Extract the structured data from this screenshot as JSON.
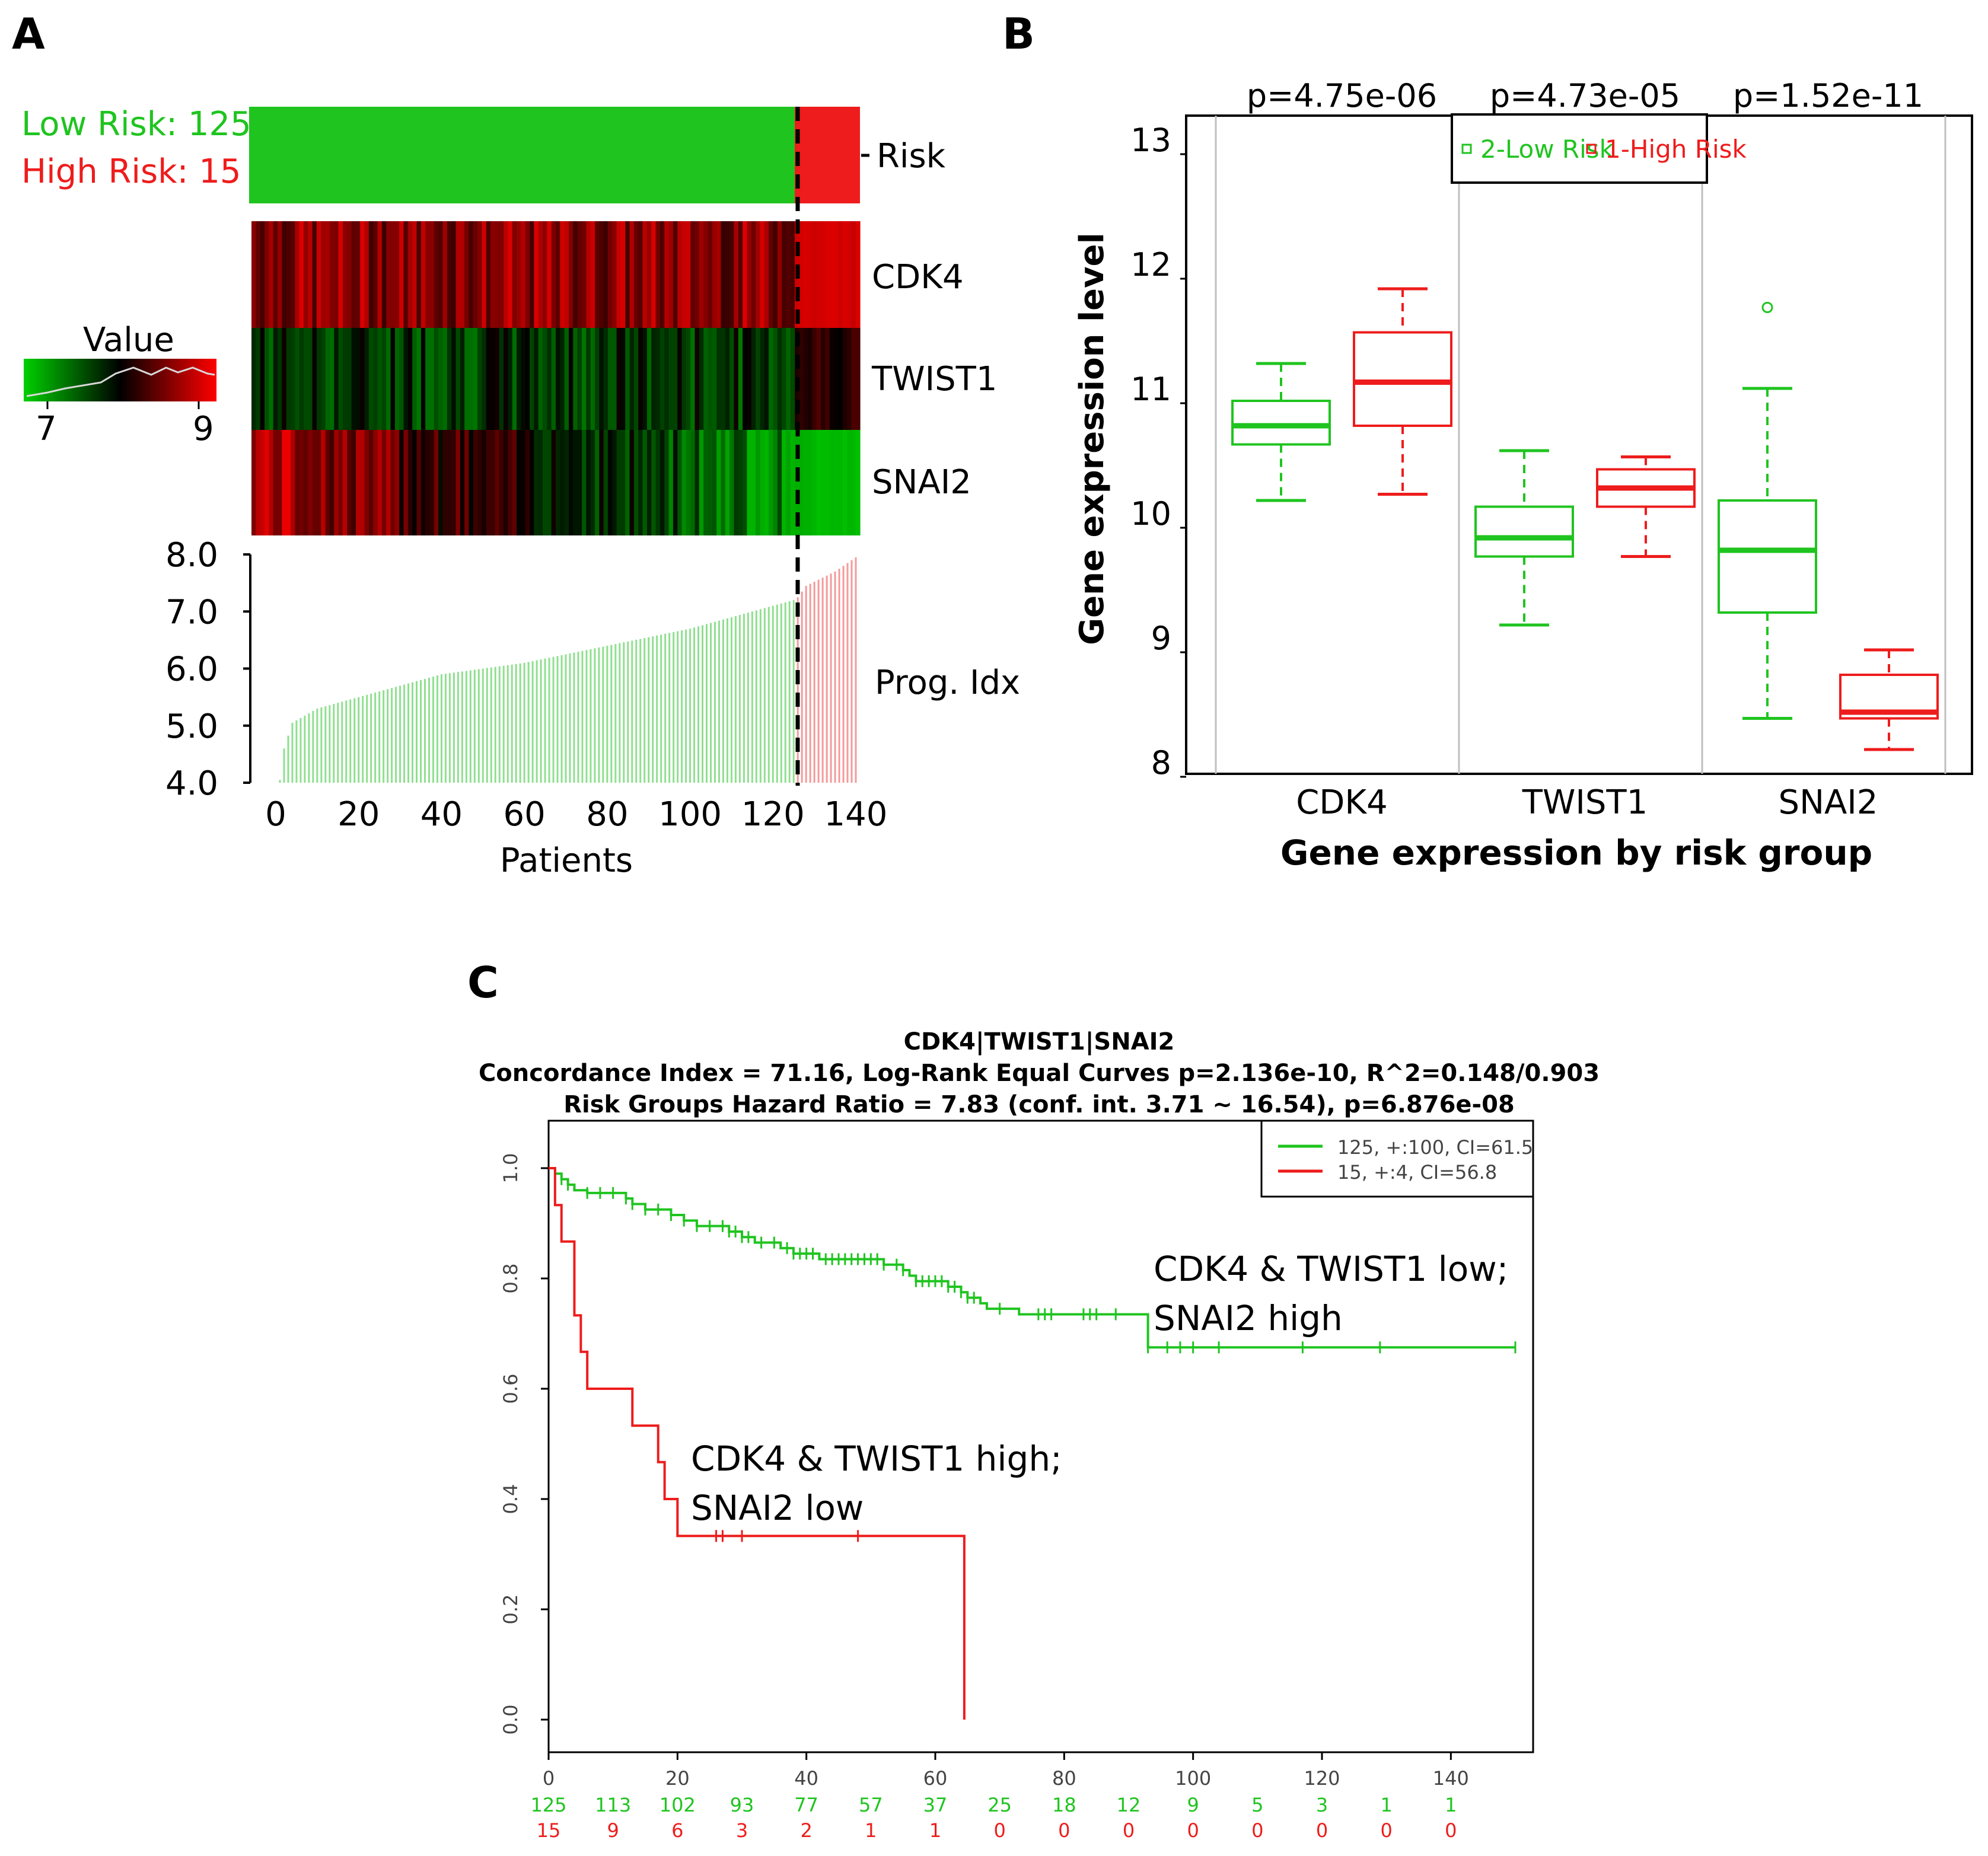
{
  "colors": {
    "low": "#1fc41f",
    "high": "#ee1c1c",
    "black": "#000000",
    "gray": "#bfbfbf"
  },
  "panel_a": {
    "letter": "A",
    "low_label": "Low Risk: 125",
    "high_label": "High Risk: 15",
    "risk_label": "Risk",
    "gene_labels": [
      "CDK4",
      "TWIST1",
      "SNAI2"
    ],
    "prog_label": "Prog. Idx",
    "legend": {
      "title": "Value",
      "min_label": "7",
      "max_label": "9"
    },
    "x_ticks": [
      "0",
      "20",
      "40",
      "60",
      "80",
      "100",
      "120",
      "140"
    ],
    "xlabel": "Patients",
    "y_ticks": [
      "4.0",
      "5.0",
      "6.0",
      "7.0",
      "8.0"
    ]
  },
  "panel_b": {
    "letter": "B",
    "ylabel": "Gene expression level",
    "xlabel": "Gene expression by risk group",
    "categories": [
      "CDK4",
      "TWIST1",
      "SNAI2"
    ],
    "pvalues": [
      "p=4.75e-06",
      "p=4.73e-05",
      "p=1.52e-11"
    ],
    "legend": [
      "2-Low Risk",
      "1-High Risk"
    ],
    "y_ticks": [
      "8",
      "9",
      "10",
      "11",
      "12",
      "13"
    ]
  },
  "panel_c": {
    "letter": "C",
    "title_lines": [
      "CDK4|TWIST1|SNAI2",
      "Concordance Index = 71.16, Log-Rank Equal Curves p=2.136e-10, R^2=0.148/0.903",
      "Risk Groups Hazard Ratio = 7.83 (conf. int. 3.71 ~ 16.54), p=6.876e-08"
    ],
    "legend": [
      "125, +:100, CI=61.5",
      "15, +:4, CI=56.8"
    ],
    "annotation_low": [
      "CDK4 & TWIST1 low;",
      "SNAI2 high"
    ],
    "annotation_high": [
      "CDK4 & TWIST1 high;",
      "SNAI2 low"
    ],
    "x_ticks": [
      "0",
      "20",
      "40",
      "60",
      "80",
      "100",
      "120",
      "140"
    ],
    "y_ticks": [
      "0.0",
      "0.2",
      "0.4",
      "0.6",
      "0.8",
      "1.0"
    ],
    "at_risk_low": [
      "125",
      "113",
      "102",
      "93",
      "77",
      "57",
      "37",
      "25",
      "18",
      "12",
      "9",
      "5",
      "3",
      "1",
      "1"
    ],
    "at_risk_high": [
      "15",
      "9",
      "6",
      "3",
      "2",
      "1",
      "1",
      "0",
      "0",
      "0",
      "0",
      "0",
      "0",
      "0",
      "0"
    ]
  },
  "chart_data": [
    {
      "type": "bar",
      "panel": "A",
      "xlabel": "Patients",
      "ylabel": "",
      "xlim": [
        0,
        140
      ],
      "ylim": [
        4.0,
        8.0
      ],
      "series": [
        {
          "name": "Low Risk",
          "n": 125,
          "x_range": [
            1,
            125
          ],
          "values_approx": {
            "1": 4.05,
            "2": 4.6,
            "4": 5.05,
            "10": 5.3,
            "20": 5.5,
            "40": 5.9,
            "60": 6.1,
            "80": 6.4,
            "100": 6.7,
            "125": 7.2
          }
        },
        {
          "name": "High Risk",
          "n": 15,
          "x_range": [
            126,
            140
          ],
          "values_approx": {
            "126": 7.25,
            "128": 7.45,
            "135": 7.7,
            "140": 7.95
          }
        }
      ]
    },
    {
      "type": "heatmap",
      "panel": "A",
      "rows": [
        "CDK4",
        "TWIST1",
        "SNAI2"
      ],
      "value_range": [
        7,
        9
      ],
      "summary": {
        "CDK4": "mostly high (red) across patients, higher in high-risk group",
        "TWIST1": "mostly low-mid (dark) across patients",
        "SNAI2": "high (red) at left, decreasing to green; green in high-risk group"
      }
    },
    {
      "type": "box",
      "panel": "B",
      "title": "",
      "xlabel": "Gene expression by risk group",
      "ylabel": "Gene expression level",
      "ylim": [
        8,
        13
      ],
      "categories": [
        "CDK4",
        "TWIST1",
        "SNAI2"
      ],
      "series": [
        {
          "name": "2-Low Risk",
          "boxes": [
            {
              "category": "CDK4",
              "whisker_low": 10.1,
              "q1": 10.55,
              "median": 10.7,
              "q3": 10.9,
              "whisker_high": 11.2
            },
            {
              "category": "TWIST1",
              "whisker_low": 9.1,
              "q1": 9.65,
              "median": 9.8,
              "q3": 10.05,
              "whisker_high": 10.5
            },
            {
              "category": "SNAI2",
              "whisker_low": 8.35,
              "q1": 9.2,
              "median": 9.7,
              "q3": 10.1,
              "whisker_high": 11.0,
              "outliers": [
                11.65
              ]
            }
          ]
        },
        {
          "name": "1-High Risk",
          "boxes": [
            {
              "category": "CDK4",
              "whisker_low": 10.15,
              "q1": 10.7,
              "median": 11.05,
              "q3": 11.45,
              "whisker_high": 11.8
            },
            {
              "category": "TWIST1",
              "whisker_low": 9.65,
              "q1": 10.05,
              "median": 10.2,
              "q3": 10.35,
              "whisker_high": 10.45
            },
            {
              "category": "SNAI2",
              "whisker_low": 8.1,
              "q1": 8.35,
              "median": 8.4,
              "q3": 8.7,
              "whisker_high": 8.9
            }
          ]
        }
      ]
    },
    {
      "type": "line",
      "panel": "C",
      "title": "CDK4|TWIST1|SNAI2",
      "xlim": [
        0,
        140
      ],
      "ylim": [
        0.0,
        1.0
      ],
      "series": [
        {
          "name": "125, +:100, CI=61.5",
          "steps": [
            [
              0,
              1.0
            ],
            [
              1,
              0.99
            ],
            [
              2,
              0.98
            ],
            [
              3,
              0.97
            ],
            [
              4,
              0.96
            ],
            [
              6,
              0.955
            ],
            [
              12,
              0.945
            ],
            [
              13,
              0.935
            ],
            [
              15,
              0.925
            ],
            [
              19,
              0.915
            ],
            [
              21,
              0.905
            ],
            [
              23,
              0.895
            ],
            [
              28,
              0.885
            ],
            [
              30,
              0.875
            ],
            [
              32,
              0.865
            ],
            [
              36,
              0.855
            ],
            [
              38,
              0.845
            ],
            [
              42,
              0.835
            ],
            [
              52,
              0.825
            ],
            [
              55,
              0.815
            ],
            [
              56,
              0.805
            ],
            [
              57,
              0.795
            ],
            [
              62,
              0.785
            ],
            [
              64,
              0.775
            ],
            [
              65,
              0.765
            ],
            [
              67,
              0.755
            ],
            [
              68,
              0.745
            ],
            [
              73,
              0.735
            ],
            [
              93,
              0.675
            ],
            [
              150,
              0.675
            ]
          ],
          "censor_x": [
            2,
            3,
            6,
            8,
            10,
            12,
            13,
            15,
            17,
            19,
            21,
            23,
            25,
            27,
            28,
            29,
            30,
            31,
            33,
            35,
            37,
            38,
            39,
            40,
            41,
            43,
            44,
            45,
            46,
            47,
            48,
            49,
            50,
            51,
            52,
            54,
            55,
            57,
            58,
            59,
            60,
            61,
            62,
            63,
            64,
            65,
            66,
            70,
            76,
            77,
            78,
            83,
            84,
            85,
            88,
            93,
            96,
            98,
            100,
            104,
            117,
            129,
            150
          ]
        },
        {
          "name": "15, +:4, CI=56.8",
          "steps": [
            [
              0,
              1.0
            ],
            [
              1,
              0.933
            ],
            [
              2,
              0.867
            ],
            [
              4,
              0.733
            ],
            [
              5,
              0.667
            ],
            [
              6,
              0.6
            ],
            [
              13,
              0.533
            ],
            [
              17,
              0.467
            ],
            [
              18,
              0.4
            ],
            [
              20,
              0.333
            ],
            [
              64.5,
              0.333
            ],
            [
              64.5,
              0.0
            ]
          ],
          "censor_x": [
            26,
            27,
            30,
            48
          ]
        }
      ]
    }
  ]
}
